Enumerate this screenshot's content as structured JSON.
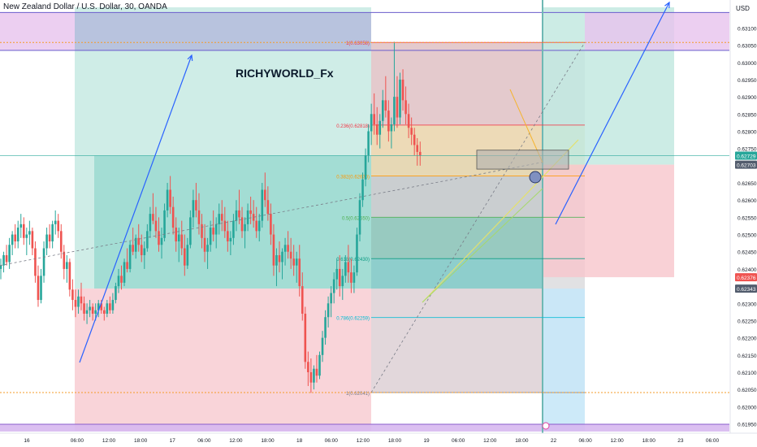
{
  "header": {
    "symbol_title": "New Zealand Dollar / U.S. Dollar, 30, OANDA",
    "currency": "USD"
  },
  "watermark": "RICHYWORLD_Fx",
  "colors": {
    "bull": "#26a69a",
    "bear": "#ef5350",
    "fib_line_red": "#f23645",
    "arrow_blue": "#2962ff"
  },
  "chart_data": {
    "type": "candlestick",
    "title": "New Zealand Dollar / U.S. Dollar, 30, OANDA",
    "ylim": [
      0.6193,
      0.6316
    ],
    "y_ticks": [
      "0.63150",
      "0.63100",
      "0.63050",
      "0.63000",
      "0.62950",
      "0.62900",
      "0.62850",
      "0.62800",
      "0.62750",
      "0.62700",
      "0.62650",
      "0.62600",
      "0.62550",
      "0.62500",
      "0.62450",
      "0.62400",
      "0.62350",
      "0.62300",
      "0.62250",
      "0.62200",
      "0.62150",
      "0.62100",
      "0.62050",
      "0.62000",
      "0.61950"
    ],
    "price_badges": [
      {
        "text": "0.62729",
        "value": 0.62729,
        "color": "#26a69a"
      },
      {
        "text": "0.62703",
        "value": 0.62703,
        "color": "#525c6d"
      },
      {
        "text": "0.62376",
        "value": 0.62376,
        "color": "#ef5350"
      },
      {
        "text": "0.62343",
        "value": 0.62343,
        "color": "#525c6d"
      }
    ],
    "x_ticks": [
      {
        "label": "16",
        "bar": 4
      },
      {
        "label": "06:00",
        "bar": 42
      },
      {
        "label": "12:00",
        "bar": 66
      },
      {
        "label": "18:00",
        "bar": 90
      },
      {
        "label": "17",
        "bar": 114
      },
      {
        "label": "06:00",
        "bar": 138
      },
      {
        "label": "12:00",
        "bar": 162
      },
      {
        "label": "18:00",
        "bar": 186
      },
      {
        "label": "18",
        "bar": 210
      },
      {
        "label": "06:00",
        "bar": 234
      },
      {
        "label": "12:00",
        "bar": 258
      },
      {
        "label": "18:00",
        "bar": 282
      },
      {
        "label": "19",
        "bar": 306
      },
      {
        "label": "06:00",
        "bar": 330
      },
      {
        "label": "12:00",
        "bar": 354
      },
      {
        "label": "18:00",
        "bar": 378
      },
      {
        "label": "22",
        "bar": 402
      },
      {
        "label": "06:00",
        "bar": 426
      },
      {
        "label": "12:00",
        "bar": 450
      },
      {
        "label": "18:00",
        "bar": 474
      },
      {
        "label": "23",
        "bar": 498
      },
      {
        "label": "06:00",
        "bar": 522
      }
    ],
    "fib_levels": [
      {
        "label": "1(0.63058)",
        "value": 0.63058
      },
      {
        "label": "0.236(0.62818)",
        "value": 0.62818
      },
      {
        "label": "0.382(0.62670)",
        "value": 0.6267
      },
      {
        "label": "0.5(0.62550)",
        "value": 0.6255
      },
      {
        "label": "0.618(0.62430)",
        "value": 0.6243
      },
      {
        "label": "0.786(0.62259)",
        "value": 0.62259
      },
      {
        "label": "1(0.62041)",
        "value": 0.62041
      }
    ],
    "zones": {
      "top_supply": [
        0.63035,
        0.63145
      ],
      "mid_long_target": [
        0.62343,
        0.62729
      ],
      "mid_long_stop": [
        0.6193,
        0.62343
      ],
      "right_short_target": [
        0.62703,
        0.6316
      ],
      "right_short_stop": [
        0.62376,
        0.62703
      ],
      "order_block": [
        0.6269,
        0.62745
      ]
    },
    "key_lines": {
      "orange_dotted_upper": 0.63058,
      "orange_dotted_lower": 0.62041
    },
    "candles": {
      "ohlc": [
        [
          0.624,
          0.6243,
          0.6237,
          0.6241
        ],
        [
          0.6241,
          0.6245,
          0.6239,
          0.6244
        ],
        [
          0.6244,
          0.6247,
          0.6241,
          0.6242
        ],
        [
          0.6242,
          0.6249,
          0.624,
          0.6247
        ],
        [
          0.6247,
          0.6251,
          0.6244,
          0.625
        ],
        [
          0.625,
          0.6253,
          0.6246,
          0.6248
        ],
        [
          0.6248,
          0.6254,
          0.6246,
          0.6252
        ],
        [
          0.6252,
          0.6256,
          0.6249,
          0.6253
        ],
        [
          0.6253,
          0.6255,
          0.6247,
          0.6249
        ],
        [
          0.6249,
          0.6252,
          0.6244,
          0.625
        ],
        [
          0.625,
          0.6254,
          0.6247,
          0.6251
        ],
        [
          0.6251,
          0.6252,
          0.6244,
          0.6246
        ],
        [
          0.6246,
          0.6248,
          0.6236,
          0.6238
        ],
        [
          0.6238,
          0.6241,
          0.6229,
          0.6231
        ],
        [
          0.6231,
          0.624,
          0.623,
          0.6238
        ],
        [
          0.6238,
          0.6248,
          0.6236,
          0.6246
        ],
        [
          0.6246,
          0.6252,
          0.6244,
          0.625
        ],
        [
          0.625,
          0.6253,
          0.6246,
          0.6248
        ],
        [
          0.6248,
          0.6254,
          0.6246,
          0.6253
        ],
        [
          0.6253,
          0.6257,
          0.625,
          0.6254
        ],
        [
          0.6254,
          0.6256,
          0.6249,
          0.6251
        ],
        [
          0.6251,
          0.6253,
          0.6243,
          0.6245
        ],
        [
          0.6245,
          0.6247,
          0.6237,
          0.624
        ],
        [
          0.624,
          0.6244,
          0.6236,
          0.6242
        ],
        [
          0.6242,
          0.6243,
          0.6232,
          0.6234
        ],
        [
          0.6234,
          0.6237,
          0.6228,
          0.6231
        ],
        [
          0.6231,
          0.6234,
          0.6226,
          0.6229
        ],
        [
          0.6229,
          0.6234,
          0.6227,
          0.6232
        ],
        [
          0.6232,
          0.6236,
          0.6228,
          0.623
        ],
        [
          0.623,
          0.6232,
          0.6225,
          0.6227
        ],
        [
          0.6227,
          0.623,
          0.6224,
          0.6228
        ],
        [
          0.6228,
          0.6231,
          0.6226,
          0.6229
        ],
        [
          0.6229,
          0.623,
          0.6225,
          0.6227
        ],
        [
          0.6227,
          0.623,
          0.6225,
          0.6228
        ],
        [
          0.6228,
          0.6231,
          0.6226,
          0.623
        ],
        [
          0.623,
          0.6231,
          0.6227,
          0.6228
        ],
        [
          0.6228,
          0.6229,
          0.6225,
          0.6227
        ],
        [
          0.6227,
          0.6231,
          0.6226,
          0.623
        ],
        [
          0.623,
          0.6232,
          0.6227,
          0.6228
        ],
        [
          0.6228,
          0.6233,
          0.6227,
          0.6231
        ],
        [
          0.6231,
          0.6236,
          0.623,
          0.6235
        ],
        [
          0.6235,
          0.624,
          0.6233,
          0.6238
        ],
        [
          0.6238,
          0.6241,
          0.6234,
          0.6236
        ],
        [
          0.6236,
          0.6243,
          0.6235,
          0.6242
        ],
        [
          0.6242,
          0.6246,
          0.6239,
          0.624
        ],
        [
          0.624,
          0.6248,
          0.6239,
          0.6247
        ],
        [
          0.6247,
          0.6252,
          0.6244,
          0.6245
        ],
        [
          0.6245,
          0.625,
          0.6243,
          0.6249
        ],
        [
          0.6249,
          0.6253,
          0.6245,
          0.6247
        ],
        [
          0.6247,
          0.625,
          0.6242,
          0.6244
        ],
        [
          0.6244,
          0.6248,
          0.624,
          0.6246
        ],
        [
          0.6246,
          0.6253,
          0.6245,
          0.6251
        ],
        [
          0.6251,
          0.6258,
          0.6249,
          0.6256
        ],
        [
          0.6256,
          0.6262,
          0.6253,
          0.6254
        ],
        [
          0.6254,
          0.6258,
          0.6249,
          0.6251
        ],
        [
          0.6251,
          0.6255,
          0.6245,
          0.6247
        ],
        [
          0.6247,
          0.6252,
          0.6243,
          0.6249
        ],
        [
          0.6249,
          0.6259,
          0.6248,
          0.6257
        ],
        [
          0.6257,
          0.6265,
          0.6255,
          0.6263
        ],
        [
          0.6263,
          0.6267,
          0.6256,
          0.6258
        ],
        [
          0.6258,
          0.6261,
          0.625,
          0.6252
        ],
        [
          0.6252,
          0.6255,
          0.6245,
          0.6248
        ],
        [
          0.6248,
          0.6252,
          0.6242,
          0.625
        ],
        [
          0.625,
          0.6254,
          0.6244,
          0.6246
        ],
        [
          0.6246,
          0.625,
          0.6238,
          0.6241
        ],
        [
          0.6241,
          0.6249,
          0.624,
          0.6247
        ],
        [
          0.6247,
          0.6257,
          0.6246,
          0.6255
        ],
        [
          0.6255,
          0.6263,
          0.6252,
          0.626
        ],
        [
          0.626,
          0.6265,
          0.6255,
          0.6257
        ],
        [
          0.6257,
          0.6262,
          0.625,
          0.6253
        ],
        [
          0.6253,
          0.6256,
          0.6246,
          0.6249
        ],
        [
          0.6249,
          0.6253,
          0.6242,
          0.6245
        ],
        [
          0.6245,
          0.6249,
          0.624,
          0.6247
        ],
        [
          0.6247,
          0.6254,
          0.6245,
          0.6252
        ],
        [
          0.6252,
          0.6257,
          0.6248,
          0.625
        ],
        [
          0.625,
          0.6255,
          0.6246,
          0.6253
        ],
        [
          0.6253,
          0.6259,
          0.625,
          0.6256
        ],
        [
          0.6256,
          0.626,
          0.6251,
          0.6254
        ],
        [
          0.6254,
          0.6258,
          0.6249,
          0.6251
        ],
        [
          0.6251,
          0.6254,
          0.6245,
          0.6248
        ],
        [
          0.6248,
          0.6251,
          0.6244,
          0.6249
        ],
        [
          0.6249,
          0.6256,
          0.6247,
          0.6254
        ],
        [
          0.6254,
          0.626,
          0.6251,
          0.6257
        ],
        [
          0.6257,
          0.6263,
          0.6253,
          0.6255
        ],
        [
          0.6255,
          0.6258,
          0.6249,
          0.6251
        ],
        [
          0.6251,
          0.6255,
          0.6246,
          0.6253
        ],
        [
          0.6253,
          0.6259,
          0.6251,
          0.6257
        ],
        [
          0.6257,
          0.6261,
          0.6253,
          0.6256
        ],
        [
          0.6256,
          0.626,
          0.6252,
          0.6254
        ],
        [
          0.6254,
          0.6258,
          0.6249,
          0.6251
        ],
        [
          0.6251,
          0.6256,
          0.6248,
          0.6254
        ],
        [
          0.6254,
          0.6265,
          0.6252,
          0.6263
        ],
        [
          0.6263,
          0.6268,
          0.6258,
          0.626
        ],
        [
          0.626,
          0.6264,
          0.6254,
          0.6256
        ],
        [
          0.6256,
          0.6259,
          0.6247,
          0.625
        ],
        [
          0.625,
          0.6253,
          0.6238,
          0.6241
        ],
        [
          0.6241,
          0.6246,
          0.6235,
          0.6244
        ],
        [
          0.6244,
          0.6248,
          0.6239,
          0.6242
        ],
        [
          0.6242,
          0.6246,
          0.6237,
          0.6245
        ],
        [
          0.6245,
          0.6249,
          0.6241,
          0.6247
        ],
        [
          0.6247,
          0.6251,
          0.6243,
          0.6245
        ],
        [
          0.6245,
          0.6249,
          0.624,
          0.6243
        ],
        [
          0.6243,
          0.6247,
          0.6238,
          0.6241
        ],
        [
          0.6241,
          0.6245,
          0.6236,
          0.6243
        ],
        [
          0.6243,
          0.6247,
          0.6232,
          0.6235
        ],
        [
          0.6235,
          0.6239,
          0.6225,
          0.6227
        ],
        [
          0.6227,
          0.6229,
          0.6211,
          0.6213
        ],
        [
          0.6213,
          0.6216,
          0.6206,
          0.621
        ],
        [
          0.621,
          0.6214,
          0.6204,
          0.6207
        ],
        [
          0.6207,
          0.6212,
          0.6205,
          0.6211
        ],
        [
          0.6211,
          0.6215,
          0.6207,
          0.6209
        ],
        [
          0.6209,
          0.6216,
          0.6208,
          0.6215
        ],
        [
          0.6215,
          0.6222,
          0.6213,
          0.622
        ],
        [
          0.622,
          0.6228,
          0.6218,
          0.6226
        ],
        [
          0.6226,
          0.6232,
          0.6223,
          0.623
        ],
        [
          0.623,
          0.6235,
          0.6226,
          0.6233
        ],
        [
          0.6233,
          0.6239,
          0.623,
          0.6237
        ],
        [
          0.6237,
          0.6243,
          0.6234,
          0.624
        ],
        [
          0.624,
          0.6244,
          0.6232,
          0.6235
        ],
        [
          0.6235,
          0.624,
          0.6231,
          0.6238
        ],
        [
          0.6238,
          0.6244,
          0.6236,
          0.6242
        ],
        [
          0.6242,
          0.6247,
          0.6236,
          0.6239
        ],
        [
          0.6239,
          0.6243,
          0.6233,
          0.6236
        ],
        [
          0.6236,
          0.6241,
          0.6233,
          0.6239
        ],
        [
          0.6239,
          0.6252,
          0.6238,
          0.625
        ],
        [
          0.625,
          0.6262,
          0.6248,
          0.626
        ],
        [
          0.626,
          0.6268,
          0.6258,
          0.6266
        ],
        [
          0.6266,
          0.6275,
          0.6264,
          0.6273
        ],
        [
          0.6273,
          0.6282,
          0.6271,
          0.628
        ],
        [
          0.628,
          0.6288,
          0.6276,
          0.6285
        ],
        [
          0.6285,
          0.6291,
          0.6279,
          0.6282
        ],
        [
          0.6282,
          0.6287,
          0.6276,
          0.6279
        ],
        [
          0.6279,
          0.6285,
          0.6275,
          0.6283
        ],
        [
          0.6283,
          0.6292,
          0.6281,
          0.6289
        ],
        [
          0.6289,
          0.6296,
          0.6284,
          0.6286
        ],
        [
          0.6286,
          0.6289,
          0.6277,
          0.628
        ],
        [
          0.628,
          0.6284,
          0.6275,
          0.6282
        ],
        [
          0.6282,
          0.6306,
          0.628,
          0.629
        ],
        [
          0.629,
          0.6296,
          0.6281,
          0.6284
        ],
        [
          0.6284,
          0.6297,
          0.6282,
          0.6295
        ],
        [
          0.6295,
          0.6298,
          0.6286,
          0.6289
        ],
        [
          0.6289,
          0.6293,
          0.6282,
          0.6285
        ],
        [
          0.6285,
          0.6288,
          0.6278,
          0.6281
        ],
        [
          0.6281,
          0.6284,
          0.6276,
          0.6279
        ],
        [
          0.6279,
          0.6281,
          0.6273,
          0.6276
        ],
        [
          0.6276,
          0.6278,
          0.627,
          0.6274
        ],
        [
          0.6274,
          0.6277,
          0.627,
          0.6273
        ]
      ]
    }
  }
}
